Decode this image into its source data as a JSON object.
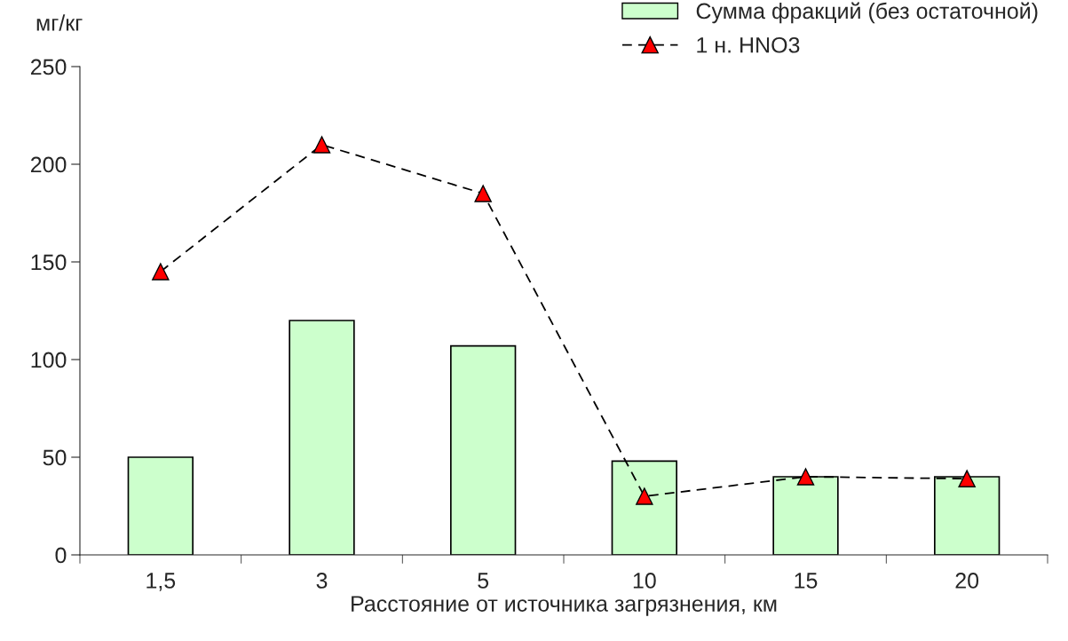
{
  "chart_data": {
    "type": "bar",
    "xlabel": "Расстояние от источника загрязнения, км",
    "ylabel": "мг/кг",
    "categories": [
      "1,5",
      "3",
      "5",
      "10",
      "15",
      "20"
    ],
    "series": [
      {
        "name": "Сумма фракций (без остаточной)",
        "color": "#ccffcc",
        "values": [
          50,
          120,
          107,
          48,
          40,
          40
        ]
      },
      {
        "name": "1 н. HNO3",
        "type": "line",
        "color": "#ff0000",
        "marker": "triangle",
        "line_style": "dashed",
        "values": [
          145,
          210,
          185,
          30,
          40,
          39
        ]
      }
    ],
    "ylim": [
      0,
      250
    ],
    "yticks": [
      0,
      50,
      100,
      150,
      200,
      250
    ],
    "grid": false,
    "legend": "top right"
  }
}
